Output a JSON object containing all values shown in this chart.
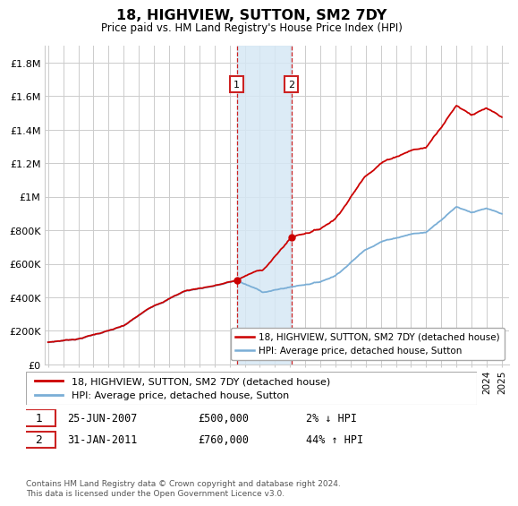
{
  "title": "18, HIGHVIEW, SUTTON, SM2 7DY",
  "subtitle": "Price paid vs. HM Land Registry's House Price Index (HPI)",
  "ylim": [
    0,
    1900000
  ],
  "yticks": [
    0,
    200000,
    400000,
    600000,
    800000,
    1000000,
    1200000,
    1400000,
    1600000,
    1800000
  ],
  "ytick_labels": [
    "£0",
    "£200K",
    "£400K",
    "£600K",
    "£800K",
    "£1M",
    "£1.2M",
    "£1.4M",
    "£1.6M",
    "£1.8M"
  ],
  "xlim_start": 1994.8,
  "xlim_end": 2025.5,
  "sale1_date": 2007.48,
  "sale1_price": 500000,
  "sale2_date": 2011.08,
  "sale2_price": 760000,
  "hpi_line_color": "#7aaed6",
  "price_line_color": "#cc0000",
  "marker_color": "#cc0000",
  "grid_color": "#cccccc",
  "shade_color": "#d6e8f5",
  "annotation_box_color": "#cc2222",
  "footnote": "Contains HM Land Registry data © Crown copyright and database right 2024.\nThis data is licensed under the Open Government Licence v3.0.",
  "legend1_label": "18, HIGHVIEW, SUTTON, SM2 7DY (detached house)",
  "legend2_label": "HPI: Average price, detached house, Sutton",
  "table_row1": [
    "1",
    "25-JUN-2007",
    "£500,000",
    "2% ↓ HPI"
  ],
  "table_row2": [
    "2",
    "31-JAN-2011",
    "£760,000",
    "44% ↑ HPI"
  ]
}
